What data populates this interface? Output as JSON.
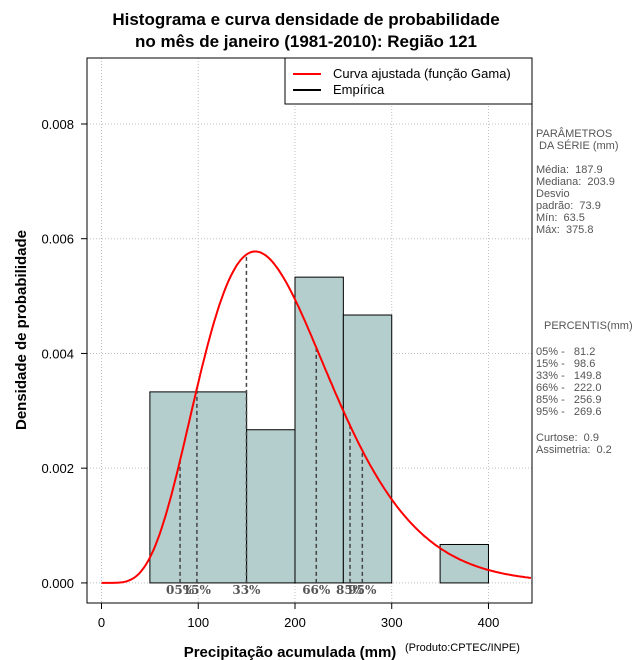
{
  "chart_data": {
    "type": "histogram",
    "title": [
      "Histograma e curva densidade de probabilidade",
      "no mês de janeiro (1981-2010): Região 121"
    ],
    "xlabel": "Precipitação acumulada (mm)",
    "ylabel": "Densidade de probabilidade",
    "credit": "(Produto:CPTEC/INPE)",
    "xlim": [
      -15,
      445
    ],
    "ylim": [
      -0.00035,
      0.00915
    ],
    "xticks": [
      0,
      100,
      200,
      300,
      400
    ],
    "yticks": [
      0.0,
      0.002,
      0.004,
      0.006,
      0.008
    ],
    "ytick_labels": [
      "0.000",
      "0.002",
      "0.004",
      "0.006",
      "0.008"
    ],
    "grid": true,
    "bins": [
      {
        "start": 50,
        "end": 150,
        "density": 0.00333
      },
      {
        "start": 150,
        "end": 200,
        "density": 0.00267
      },
      {
        "start": 200,
        "end": 250,
        "density": 0.00533
      },
      {
        "start": 250,
        "end": 300,
        "density": 0.00467
      },
      {
        "start": 350,
        "end": 400,
        "density": 0.00067
      }
    ],
    "fitted_curve": {
      "name": "Curva ajustada (função Gama)",
      "distribution": "gamma",
      "shape": 6.46,
      "scale": 29.1,
      "color": "#ff0000"
    },
    "percentile_markers": [
      {
        "label": "05%",
        "value": 81.2
      },
      {
        "label": "15%",
        "value": 98.6
      },
      {
        "label": "33%",
        "value": 149.8
      },
      {
        "label": "66%",
        "value": 222.0
      },
      {
        "label": "85%",
        "value": 256.9
      },
      {
        "label": "95%",
        "value": 269.6
      }
    ],
    "legend": [
      {
        "label": "Curva ajustada (função Gama)",
        "color": "#ff0000"
      },
      {
        "label": "Empírica",
        "color": "#000000"
      }
    ],
    "legend_position": "top-right",
    "bar_color": "#b4cdcd",
    "grid_color": "#c0c0c0"
  },
  "side_panel": {
    "params_title": [
      "PARÂMETROS",
      " DA SÉRIE (mm)"
    ],
    "params": [
      "Média:  187.9",
      "Mediana:  203.9",
      "Desvio",
      "padrão:  73.9",
      "Mín:  63.5",
      "Máx:  375.8"
    ],
    "percentis_title": "PERCENTIS(mm)",
    "percentis": [
      "05% -   81.2",
      "15% -   98.6",
      "33% -   149.8",
      "66% -   222.0",
      "85% -   256.9",
      "95% -   269.6"
    ],
    "stats": [
      "Curtose:  0.9",
      "Assimetria:  0.2"
    ]
  }
}
